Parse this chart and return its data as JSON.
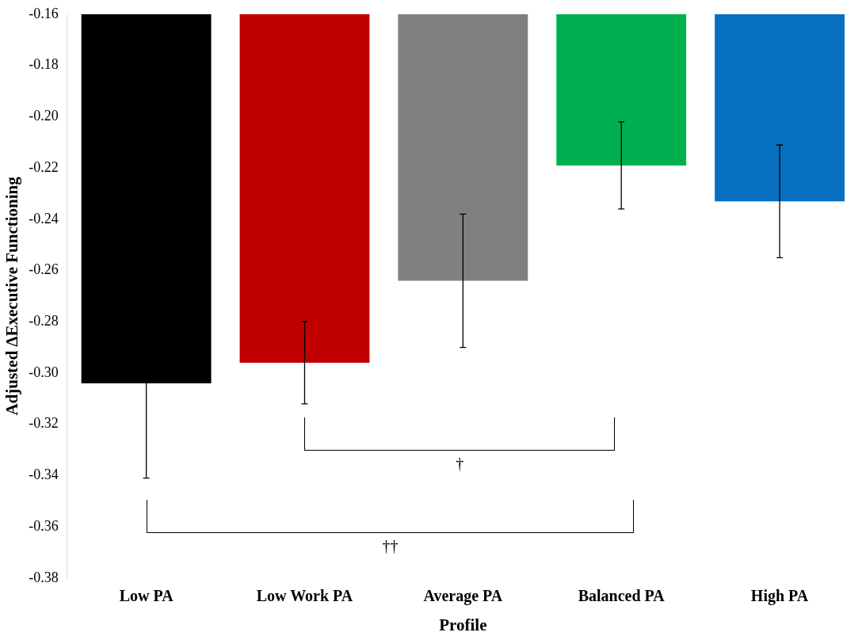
{
  "chart_data": {
    "type": "bar",
    "xlabel": "Profile",
    "ylabel": "Adjusted ΔExecutive Functioning",
    "categories": [
      "Low PA",
      "Low Work PA",
      "Average PA",
      "Balanced PA",
      "High PA"
    ],
    "values": [
      -0.304,
      -0.296,
      -0.264,
      -0.219,
      -0.233
    ],
    "colors": [
      "#000000",
      "#c00000",
      "#808080",
      "#00b050",
      "#0870c0"
    ],
    "errors": [
      0.037,
      0.016,
      0.026,
      0.017,
      0.022
    ],
    "ylim": [
      -0.38,
      -0.16
    ],
    "yticks": [
      {
        "value": -0.38,
        "label": "-0.38"
      },
      {
        "value": -0.36,
        "label": "-0.36"
      },
      {
        "value": -0.34,
        "label": "-0.34"
      },
      {
        "value": -0.32,
        "label": "-0.32"
      },
      {
        "value": -0.3,
        "label": "-0.30"
      },
      {
        "value": -0.28,
        "label": "-0.28"
      },
      {
        "value": -0.26,
        "label": "-0.26"
      },
      {
        "value": -0.24,
        "label": "-0.24"
      },
      {
        "value": -0.22,
        "label": "-0.22"
      },
      {
        "value": -0.2,
        "label": "-0.20"
      },
      {
        "value": -0.18,
        "label": "-0.18"
      },
      {
        "value": -0.16,
        "label": "-0.16"
      }
    ],
    "grid": false,
    "legend": false,
    "annotations": [
      "†",
      "††"
    ]
  }
}
